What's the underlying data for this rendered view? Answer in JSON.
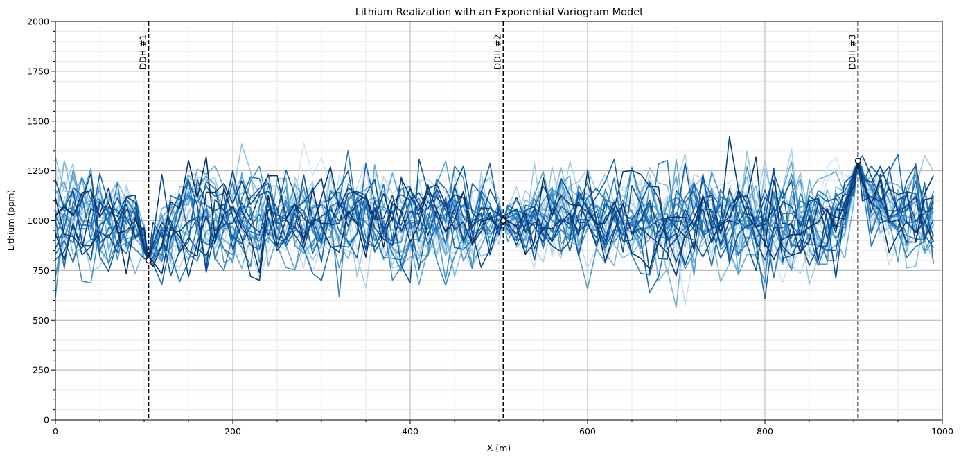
{
  "chart_data": {
    "type": "line",
    "title": "Lithium Realization with an Exponential Variogram Model",
    "xlabel": "X (m)",
    "ylabel": "Lithium (ppm)",
    "xlim": [
      0,
      1000
    ],
    "ylim": [
      0,
      2000
    ],
    "x_ticks": [
      "0",
      "200",
      "400",
      "600",
      "800",
      "1000"
    ],
    "y_ticks": [
      "0",
      "250",
      "500",
      "750",
      "1000",
      "1250",
      "1500",
      "1750",
      "2000"
    ],
    "grid": {
      "major": true,
      "minor": true
    },
    "x_step": 10,
    "realizations": 30,
    "series_colormap": "Blues",
    "drillholes": [
      {
        "label": "DDH #1",
        "x": 105,
        "y": 800
      },
      {
        "label": "DDH #2",
        "x": 505,
        "y": 1000
      },
      {
        "label": "DDH #3",
        "x": 905,
        "y": 1300
      }
    ],
    "mean": 1000,
    "spread": 180
  }
}
